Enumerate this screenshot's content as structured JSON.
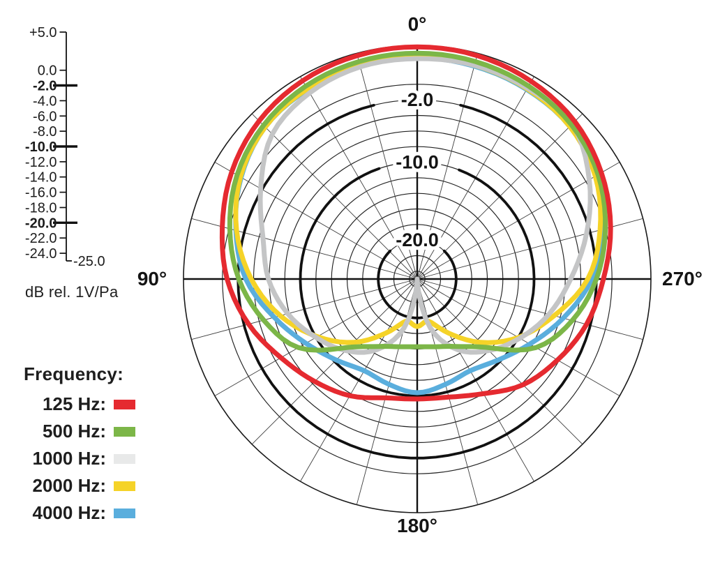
{
  "scale_bar": {
    "unit_label": "dB rel. 1V/Pa",
    "range_db": [
      5,
      -25
    ],
    "ticks": [
      {
        "label": "+5.0",
        "db": 5,
        "bold": false
      },
      {
        "label": "0.0",
        "db": 0,
        "bold": false
      },
      {
        "label": "-2.0",
        "db": -2,
        "bold": true
      },
      {
        "label": "-4.0",
        "db": -4,
        "bold": false
      },
      {
        "label": "-6.0",
        "db": -6,
        "bold": false
      },
      {
        "label": "-8.0",
        "db": -8,
        "bold": false
      },
      {
        "label": "-10.0",
        "db": -10,
        "bold": true
      },
      {
        "label": "-12.0",
        "db": -12,
        "bold": false
      },
      {
        "label": "-14.0",
        "db": -14,
        "bold": false
      },
      {
        "label": "-16.0",
        "db": -16,
        "bold": false
      },
      {
        "label": "-18.0",
        "db": -18,
        "bold": false
      },
      {
        "label": "-20.0",
        "db": -20,
        "bold": true
      },
      {
        "label": "-22.0",
        "db": -22,
        "bold": false
      },
      {
        "label": "-24.0",
        "db": -24,
        "bold": false
      }
    ],
    "end_label": {
      "label": "-25.0",
      "db": -25
    }
  },
  "legend": {
    "title": "Frequency:",
    "items": [
      {
        "label": "125 Hz:",
        "color": "#e52a30"
      },
      {
        "label": "500 Hz:",
        "color": "#7cb648"
      },
      {
        "label": "1000 Hz:",
        "color": "#e8e9e9"
      },
      {
        "label": "2000 Hz:",
        "color": "#f5d328"
      },
      {
        "label": "4000 Hz:",
        "color": "#5aaedd"
      }
    ]
  },
  "chart_data": {
    "type": "line",
    "subtype": "polar-pattern",
    "title": "",
    "radial_axis_label": "dB rel. 1V/Pa",
    "radial_range_db": [
      -25,
      5
    ],
    "ring_step_db": 2,
    "bold_rings": [
      {
        "db": -2,
        "label": "-2.0",
        "gap_half_deg": 14
      },
      {
        "db": -10,
        "label": "-10.0",
        "gap_half_deg": 19
      },
      {
        "db": -20,
        "label": "-20.0",
        "gap_half_deg": 44
      }
    ],
    "spoke_step_deg": 15,
    "angle_convention": "0 deg at top (front), angles increase counterclockwise: 90 deg left, 180 deg bottom, 270 deg right",
    "angle_labels": [
      {
        "label": "0°",
        "angle": 0
      },
      {
        "label": "90°",
        "angle": 90
      },
      {
        "label": "180°",
        "angle": 180
      },
      {
        "label": "270°",
        "angle": 270
      }
    ],
    "angles_deg": [
      0,
      15,
      30,
      45,
      60,
      75,
      90,
      105,
      120,
      135,
      150,
      165,
      180,
      195,
      210,
      225,
      240,
      255,
      270,
      285,
      300,
      315,
      330,
      345
    ],
    "series": [
      {
        "name": "125 Hz",
        "color": "#e52a30",
        "values_db": [
          4.8,
          4.7,
          4.4,
          3.7,
          2.5,
          0.9,
          -0.6,
          -2.6,
          -4.8,
          -6.4,
          -7.7,
          -9.2,
          -9.6,
          -9.3,
          -8.0,
          -5.8,
          -4.2,
          -2.5,
          -1.1,
          0.7,
          2.3,
          3.6,
          4.3,
          4.7
        ]
      },
      {
        "name": "500 Hz",
        "color": "#7cb648",
        "values_db": [
          4.0,
          3.9,
          3.6,
          2.9,
          1.7,
          -0.1,
          -2.1,
          -4.6,
          -7.4,
          -12.6,
          -15.0,
          -16.0,
          -16.3,
          -16.0,
          -15.0,
          -12.6,
          -7.4,
          -4.4,
          -2.0,
          0.0,
          1.8,
          3.0,
          3.6,
          3.9
        ]
      },
      {
        "name": "1000 Hz",
        "color": "#c4c5c6",
        "values_db": [
          3.3,
          3.2,
          2.6,
          1.3,
          -1.8,
          -4.5,
          -5.9,
          -7.8,
          -10.0,
          -12.0,
          -14.5,
          -18.5,
          -25.0,
          -18.5,
          -14.5,
          -12.0,
          -9.8,
          -7.5,
          -5.3,
          -2.5,
          0.5,
          3.1,
          3.3,
          3.4
        ]
      },
      {
        "name": "2000 Hz",
        "color": "#f5d328",
        "values_db": [
          3.5,
          3.4,
          3.2,
          2.6,
          1.2,
          -1.0,
          -3.7,
          -6.8,
          -10.2,
          -13.5,
          -17.0,
          -19.4,
          -18.9,
          -19.4,
          -17.0,
          -13.5,
          -10.0,
          -6.8,
          -3.1,
          -0.7,
          1.4,
          2.7,
          3.2,
          3.4
        ]
      },
      {
        "name": "4000 Hz",
        "color": "#5aaedd",
        "values_db": [
          3.4,
          3.3,
          3.1,
          2.6,
          1.1,
          -0.9,
          -3.0,
          -6.0,
          -8.5,
          -10.3,
          -11.4,
          -11.0,
          -10.4,
          -11.0,
          -11.4,
          -10.3,
          -8.3,
          -5.6,
          -2.6,
          -0.5,
          1.5,
          2.7,
          3.1,
          3.3
        ]
      }
    ]
  }
}
